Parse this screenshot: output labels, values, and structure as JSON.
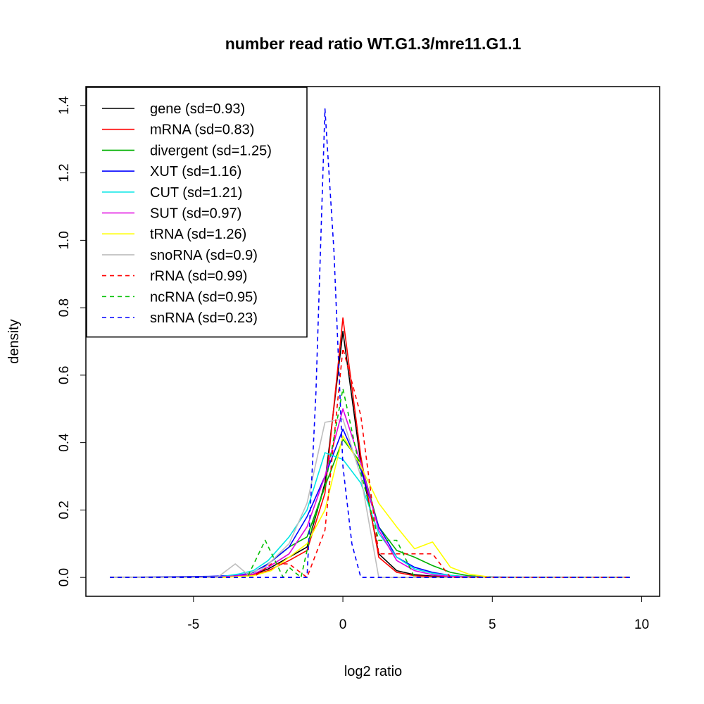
{
  "chart_data": {
    "type": "line",
    "title": "number read ratio WT.G1.3/mre11.G1.1",
    "xlabel": "log2 ratio",
    "ylabel": "density",
    "xlim": [
      -8.6,
      10.6
    ],
    "ylim": [
      -0.056,
      1.456
    ],
    "x_ticks": [
      -5,
      0,
      5,
      10
    ],
    "y_ticks": [
      0.0,
      0.2,
      0.4,
      0.6,
      0.8,
      1.0,
      1.2,
      1.4
    ],
    "x_tick_labels": [
      "-5",
      "0",
      "5",
      "10"
    ],
    "y_tick_labels": [
      "0.0",
      "0.2",
      "0.4",
      "0.6",
      "0.8",
      "1.0",
      "1.2",
      "1.4"
    ],
    "legend_position": "top-left",
    "series": [
      {
        "name": "gene (sd=0.93)",
        "color": "#000000",
        "dashed": false,
        "x": [
          -7.8,
          -5.0,
          -4.0,
          -3.5,
          -3.0,
          -2.5,
          -1.8,
          -1.2,
          -0.6,
          0.0,
          0.6,
          1.2,
          1.8,
          2.4,
          3.0,
          4.0,
          5.0,
          7.0,
          9.6
        ],
        "y": [
          0.0,
          0.0,
          0.002,
          0.005,
          0.01,
          0.025,
          0.06,
          0.09,
          0.28,
          0.73,
          0.34,
          0.07,
          0.02,
          0.008,
          0.004,
          0.002,
          0.001,
          0.0,
          0.0
        ]
      },
      {
        "name": "mRNA (sd=0.83)",
        "color": "#ff0000",
        "dashed": false,
        "x": [
          -7.8,
          -5.0,
          -4.0,
          -3.5,
          -3.0,
          -2.5,
          -1.8,
          -1.2,
          -0.6,
          0.0,
          0.6,
          1.2,
          1.8,
          2.4,
          3.0,
          4.0,
          5.0,
          7.0,
          9.6
        ],
        "y": [
          0.0,
          0.0,
          0.001,
          0.004,
          0.008,
          0.02,
          0.05,
          0.08,
          0.25,
          0.77,
          0.36,
          0.06,
          0.015,
          0.005,
          0.002,
          0.001,
          0.0,
          0.0,
          0.0
        ]
      },
      {
        "name": "divergent (sd=1.25)",
        "color": "#00b000",
        "dashed": false,
        "x": [
          -7.8,
          -5.0,
          -4.0,
          -3.5,
          -3.0,
          -2.5,
          -1.8,
          -1.2,
          -0.6,
          0.0,
          0.6,
          1.2,
          1.8,
          2.4,
          3.0,
          3.6,
          4.2,
          5.0,
          9.6
        ],
        "y": [
          0.0,
          0.0,
          0.002,
          0.005,
          0.015,
          0.04,
          0.09,
          0.12,
          0.27,
          0.41,
          0.34,
          0.15,
          0.08,
          0.06,
          0.035,
          0.015,
          0.005,
          0.001,
          0.0
        ]
      },
      {
        "name": "XUT (sd=1.16)",
        "color": "#0000ff",
        "dashed": false,
        "x": [
          -7.8,
          -5.5,
          -4.5,
          -3.5,
          -3.0,
          -2.5,
          -1.8,
          -1.2,
          -0.6,
          0.0,
          0.6,
          1.2,
          1.8,
          2.4,
          3.0,
          3.6,
          4.2,
          5.0,
          9.6
        ],
        "y": [
          0.0,
          0.002,
          0.003,
          0.006,
          0.015,
          0.04,
          0.09,
          0.18,
          0.3,
          0.44,
          0.32,
          0.15,
          0.06,
          0.03,
          0.015,
          0.006,
          0.002,
          0.001,
          0.0
        ]
      },
      {
        "name": "CUT (sd=1.21)",
        "color": "#00e5e5",
        "dashed": false,
        "x": [
          -7.8,
          -5.0,
          -4.0,
          -3.5,
          -3.0,
          -2.5,
          -1.8,
          -1.2,
          -0.6,
          0.0,
          0.6,
          1.2,
          1.8,
          2.4,
          3.0,
          3.6,
          4.2,
          5.0,
          9.6
        ],
        "y": [
          0.0,
          0.0,
          0.003,
          0.01,
          0.02,
          0.05,
          0.12,
          0.2,
          0.37,
          0.35,
          0.28,
          0.13,
          0.06,
          0.025,
          0.012,
          0.006,
          0.002,
          0.0,
          0.0
        ]
      },
      {
        "name": "SUT (sd=0.97)",
        "color": "#e000e0",
        "dashed": false,
        "x": [
          -7.8,
          -5.0,
          -4.0,
          -3.5,
          -3.0,
          -2.5,
          -1.8,
          -1.2,
          -0.6,
          0.0,
          0.6,
          1.2,
          1.8,
          2.4,
          3.0,
          3.6,
          5.0,
          9.6
        ],
        "y": [
          0.0,
          0.0,
          0.002,
          0.005,
          0.01,
          0.03,
          0.07,
          0.15,
          0.3,
          0.5,
          0.34,
          0.14,
          0.05,
          0.02,
          0.008,
          0.003,
          0.0,
          0.0
        ]
      },
      {
        "name": "tRNA (sd=1.26)",
        "color": "#ffff00",
        "dashed": false,
        "x": [
          -7.8,
          -4.0,
          -3.0,
          -2.4,
          -1.8,
          -1.2,
          -0.6,
          0.0,
          0.6,
          1.2,
          1.8,
          2.4,
          3.0,
          3.6,
          4.2,
          5.0,
          9.6
        ],
        "y": [
          0.0,
          0.0,
          0.005,
          0.02,
          0.06,
          0.1,
          0.2,
          0.42,
          0.33,
          0.22,
          0.15,
          0.085,
          0.105,
          0.03,
          0.01,
          0.0,
          0.0
        ]
      },
      {
        "name": "snoRNA (sd=0.9)",
        "color": "#bebebe",
        "dashed": false,
        "x": [
          -7.8,
          -4.2,
          -3.6,
          -3.2,
          -2.6,
          -1.8,
          -1.2,
          -0.6,
          0.0,
          0.6,
          1.2,
          1.8,
          9.6
        ],
        "y": [
          0.0,
          0.0,
          0.04,
          0.01,
          0.03,
          0.1,
          0.22,
          0.46,
          0.47,
          0.3,
          0.0,
          0.0,
          0.0
        ]
      },
      {
        "name": "rRNA (sd=0.99)",
        "color": "#ff0000",
        "dashed": true,
        "x": [
          -7.8,
          -3.0,
          -2.4,
          -1.8,
          -1.2,
          -0.6,
          0.0,
          0.6,
          1.2,
          1.8,
          2.4,
          3.0,
          3.6,
          9.6
        ],
        "y": [
          0.0,
          0.0,
          0.04,
          0.04,
          0.0,
          0.14,
          0.68,
          0.48,
          0.07,
          0.07,
          0.07,
          0.07,
          0.0,
          0.0
        ]
      },
      {
        "name": "ncRNA (sd=0.95)",
        "color": "#00c000",
        "dashed": true,
        "x": [
          -7.8,
          -3.2,
          -2.6,
          -2.0,
          -1.8,
          -1.4,
          -1.0,
          -0.6,
          0.0,
          0.6,
          1.2,
          1.8,
          2.4,
          3.0,
          9.6
        ],
        "y": [
          0.0,
          0.0,
          0.11,
          0.0,
          0.03,
          0.0,
          0.16,
          0.27,
          0.56,
          0.31,
          0.11,
          0.11,
          0.0,
          0.0,
          0.0
        ]
      },
      {
        "name": "snRNA (sd=0.23)",
        "color": "#0000ff",
        "dashed": true,
        "x": [
          -7.8,
          -1.2,
          -0.9,
          -0.6,
          -0.3,
          0.0,
          0.3,
          0.6,
          9.6
        ],
        "y": [
          0.0,
          0.0,
          0.55,
          1.39,
          0.97,
          0.33,
          0.1,
          0.0,
          0.0
        ]
      }
    ]
  }
}
